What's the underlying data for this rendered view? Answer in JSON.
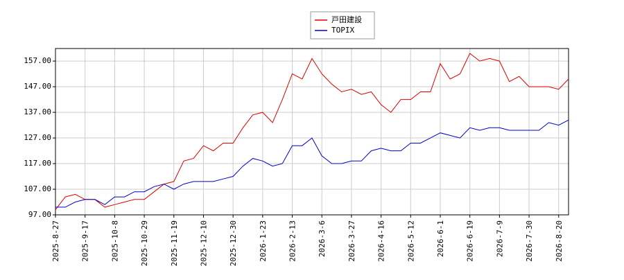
{
  "chart_data": {
    "type": "line",
    "categories": [
      "2025-8-27",
      null,
      null,
      "2025-9-17",
      null,
      null,
      "2025-10-8",
      null,
      null,
      "2025-10-29",
      null,
      null,
      "2025-11-19",
      null,
      null,
      "2025-12-10",
      null,
      null,
      "2025-12-30",
      null,
      null,
      "2026-1-23",
      null,
      null,
      "2026-2-13",
      null,
      null,
      "2026-3-6",
      null,
      null,
      "2026-3-27",
      null,
      null,
      "2026-4-16",
      null,
      null,
      "2026-5-12",
      null,
      null,
      "2026-6-1",
      null,
      null,
      "2026-6-19",
      null,
      null,
      "2026-7-9",
      null,
      null,
      "2026-7-30",
      null,
      null,
      "2026-8-20",
      null
    ],
    "series": [
      {
        "name": "戸田建設",
        "color": "#dd0000",
        "values": [
          99,
          104,
          105,
          103,
          103,
          100,
          101,
          102,
          103,
          103,
          106,
          109,
          110,
          118,
          119,
          124,
          122,
          125,
          125,
          131,
          136,
          137,
          133,
          142,
          152,
          150,
          158,
          152,
          148,
          145,
          146,
          144,
          145,
          140,
          137,
          142,
          142,
          145,
          145,
          156,
          150,
          152,
          160,
          157,
          158,
          157,
          149,
          151,
          147,
          147,
          147,
          146,
          150
        ]
      },
      {
        "name": "TOPIX",
        "color": "#0000cc",
        "values": [
          100,
          100,
          102,
          103,
          103,
          101,
          104,
          104,
          106,
          106,
          108,
          109,
          107,
          109,
          110,
          110,
          110,
          111,
          112,
          116,
          119,
          118,
          116,
          117,
          124,
          124,
          127,
          120,
          117,
          117,
          118,
          118,
          122,
          123,
          122,
          122,
          125,
          125,
          127,
          129,
          128,
          127,
          131,
          130,
          131,
          131,
          130,
          130,
          130,
          130,
          133,
          132,
          134
        ]
      }
    ],
    "ylim": [
      97,
      161.9
    ],
    "yticks": [
      {
        "value": 97,
        "label": "97.00"
      },
      {
        "value": 107,
        "label": "107.00"
      },
      {
        "value": 117,
        "label": "117.00"
      },
      {
        "value": 127,
        "label": "127.00"
      },
      {
        "value": 137,
        "label": "137.00"
      },
      {
        "value": 147,
        "label": "147.00"
      },
      {
        "value": 157,
        "label": "157.00"
      }
    ],
    "grid": true
  }
}
